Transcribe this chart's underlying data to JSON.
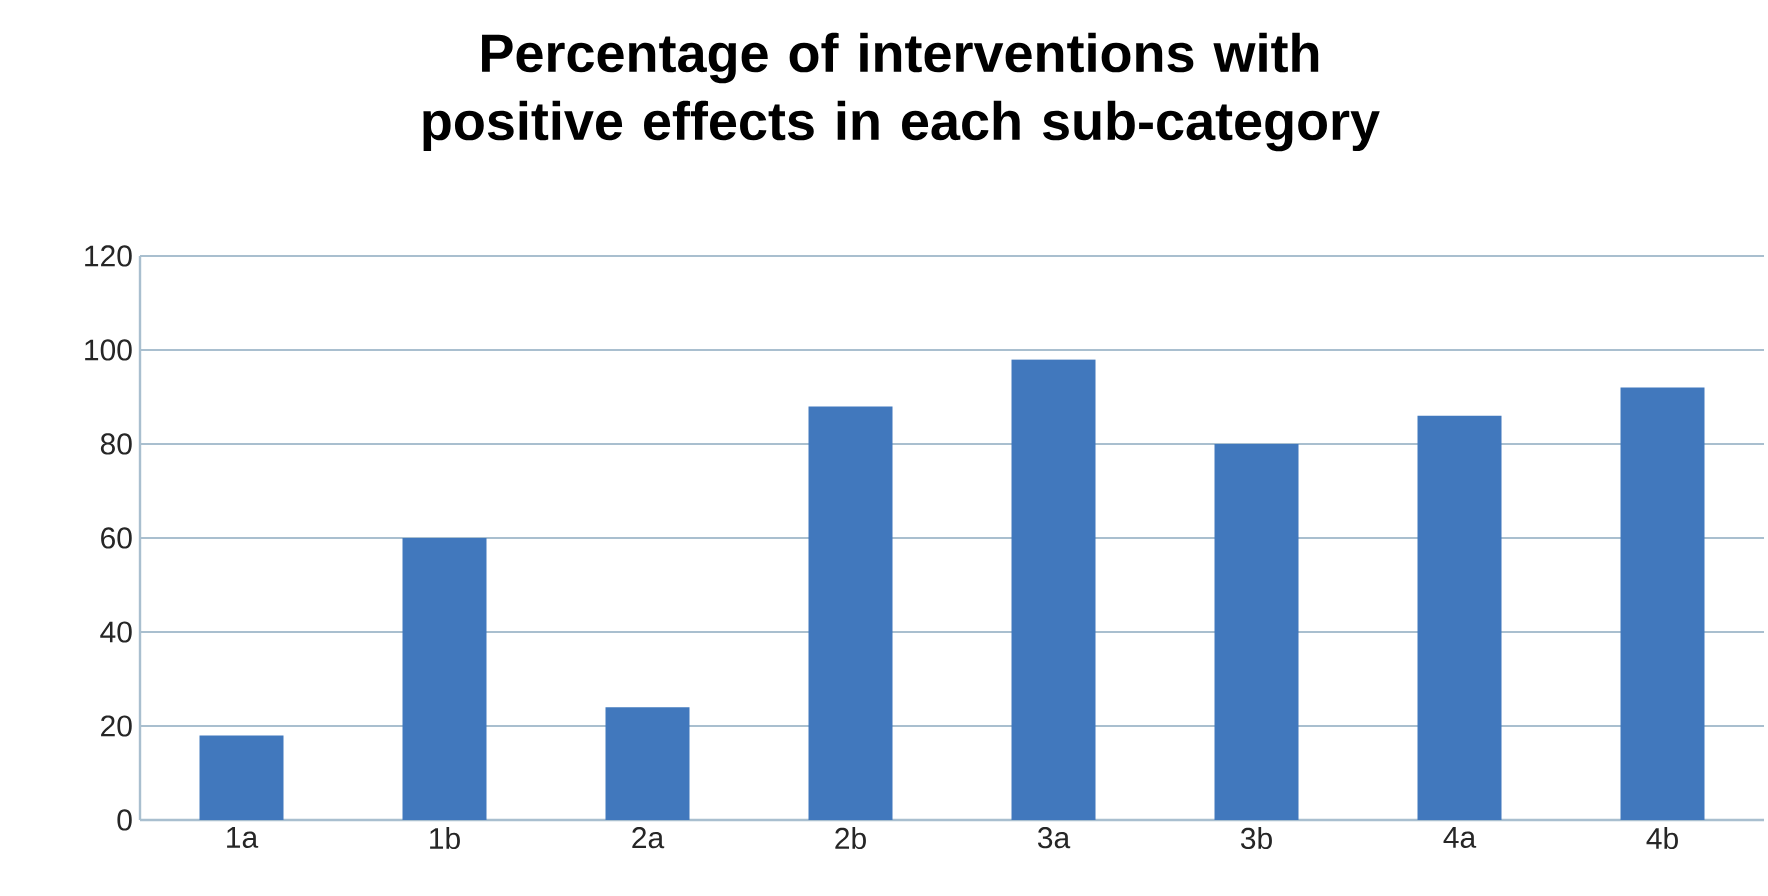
{
  "chart_data": {
    "type": "bar",
    "title": "Percentage of interventions with positive effects in each sub-category",
    "categories": [
      "1a",
      "1b",
      "2a",
      "2b",
      "3a",
      "3b",
      "4a",
      "4b"
    ],
    "values": [
      18,
      60,
      24,
      88,
      98,
      80,
      86,
      92
    ],
    "color": "#4178bd",
    "ylim": [
      0,
      120
    ],
    "yticks": [
      0,
      20,
      40,
      60,
      80,
      100,
      120
    ],
    "grid": "y"
  }
}
